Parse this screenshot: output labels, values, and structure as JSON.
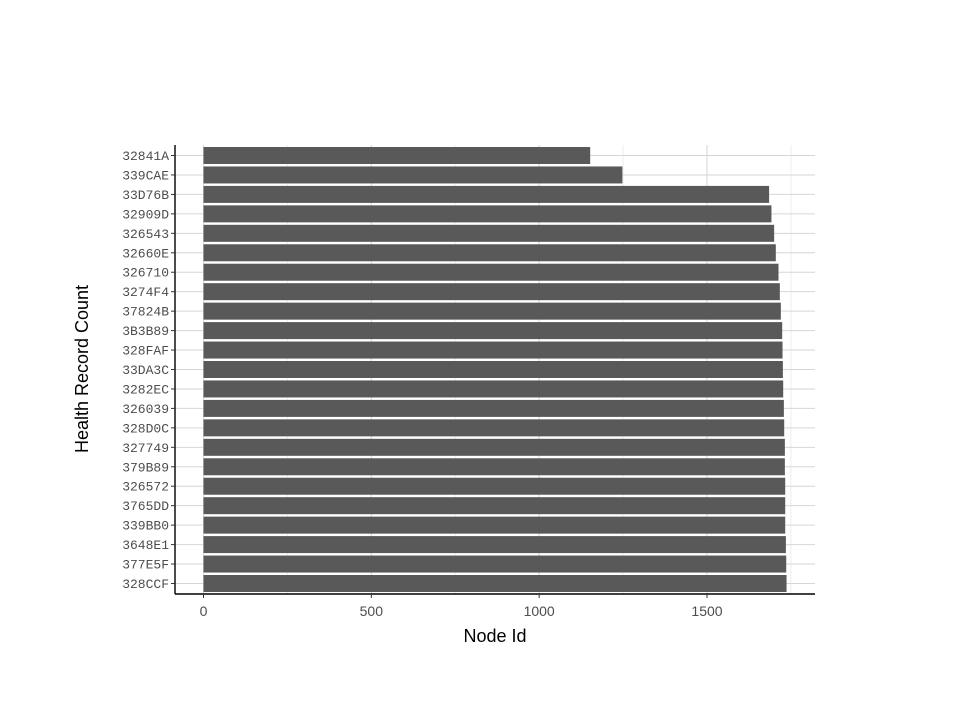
{
  "chart_data": {
    "type": "bar",
    "orientation": "horizontal",
    "xlabel": "Node Id",
    "ylabel": "Health Record Count",
    "xlim": [
      0,
      1830
    ],
    "x_ticks": [
      0,
      500,
      1000,
      1500
    ],
    "grid": true,
    "bar_color": "#595959",
    "categories": [
      "32841A",
      "339CAE",
      "33D76B",
      "32909D",
      "326543",
      "32660E",
      "326710",
      "3274F4",
      "37824B",
      "3B3B89",
      "328FAF",
      "33DA3C",
      "3282EC",
      "326039",
      "328D0C",
      "327749",
      "379B89",
      "326572",
      "3765DD",
      "339BB0",
      "3648E1",
      "377E5F",
      "328CCF"
    ],
    "values": [
      1152,
      1248,
      1685,
      1692,
      1700,
      1705,
      1713,
      1717,
      1720,
      1724,
      1725,
      1726,
      1727,
      1729,
      1730,
      1732,
      1732,
      1733,
      1733,
      1733,
      1735,
      1736,
      1737
    ]
  }
}
